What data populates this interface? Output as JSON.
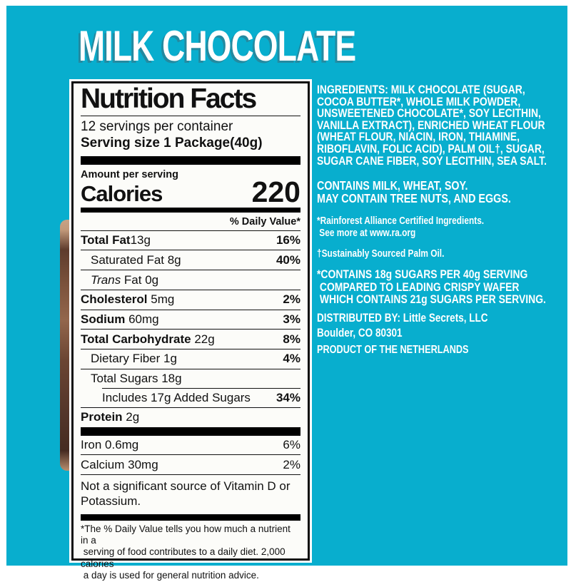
{
  "product": {
    "title": "MILK CHOCOLATE"
  },
  "nutrition": {
    "panel_title": "Nutrition Facts",
    "servings_per_container": "12 servings per container",
    "serving_size": "Serving size 1 Package(40g)",
    "amount_per_serving": "Amount per serving",
    "calories_label": "Calories",
    "calories_value": "220",
    "daily_value_header": "% Daily Value*",
    "rows": [
      {
        "cls": "",
        "bold": "Total Fat",
        "italic": "",
        "text": "13g",
        "dv": "16%"
      },
      {
        "cls": "l1",
        "bold": "",
        "italic": "",
        "text": "Saturated Fat 8g",
        "dv": "40%"
      },
      {
        "cls": "l1",
        "bold": "",
        "italic": "Trans",
        "text": " Fat 0g",
        "dv": ""
      },
      {
        "cls": "",
        "bold": "Cholesterol",
        "italic": "",
        "text": " 5mg",
        "dv": "2%"
      },
      {
        "cls": "",
        "bold": "Sodium",
        "italic": "",
        "text": " 60mg",
        "dv": "3%"
      },
      {
        "cls": "",
        "bold": "Total Carbohydrate",
        "italic": "",
        "text": " 22g",
        "dv": "8%"
      },
      {
        "cls": "l1",
        "bold": "",
        "italic": "",
        "text": "Dietary Fiber 1g",
        "dv": "4%"
      },
      {
        "cls": "l1",
        "bold": "",
        "italic": "",
        "text": "Total Sugars 18g",
        "dv": ""
      },
      {
        "cls": "l2 sep-indent",
        "bold": "",
        "italic": "",
        "text": "Includes 17g Added Sugars",
        "dv": "34%"
      },
      {
        "cls": "",
        "bold": "Protein",
        "italic": "",
        "text": " 2g",
        "dv": ""
      }
    ],
    "minerals": [
      {
        "cls": "dv-reg no-top",
        "bold": "",
        "italic": "",
        "text": "Iron 0.6mg",
        "dv": "6%"
      },
      {
        "cls": "dv-reg",
        "bold": "",
        "italic": "",
        "text": "Calcium 30mg",
        "dv": "2%"
      }
    ],
    "not_significant": "Not a significant source of Vitamin D or Potassium.",
    "footnote": "*The % Daily Value tells you how much a nutrient in a\n serving of food contributes to a daily diet. 2,000 calories\n a day is used for general nutrition advice."
  },
  "right_panel": {
    "ingredients": "INGREDIENTS: MILK CHOCOLATE (SUGAR,\nCOCOA BUTTER*, WHOLE MILK POWDER,\nUNSWEETENED CHOCOLATE*, SOY LECITHIN,\nVANILLA EXTRACT), ENRICHED WHEAT FLOUR\n(WHEAT FLOUR, NIACIN, IRON, THIAMINE,\nRIBOFLAVIN, FOLIC ACID), PALM OIL†, SUGAR,\nSUGAR CANE FIBER, SOY LECITHIN, SEA SALT.",
    "contains": "CONTAINS MILK, WHEAT, SOY.\nMAY CONTAIN TREE NUTS, AND EGGS.",
    "rainforest_note": "*Rainforest Alliance Certified Ingredients.\n See more at www.ra.org",
    "palm_oil_note": "†Sustainably Sourced Palm Oil.",
    "sugar_comparison_note": "*CONTAINS 18g SUGARS PER 40g SERVING\n COMPARED TO LEADING CRISPY WAFER\n WHICH CONTAINS 21g SUGARS PER SERVING.",
    "distributed_by": "DISTRIBUTED BY: Little Secrets, LLC\nBoulder, CO 80301",
    "product_of": "PRODUCT OF THE NETHERLANDS"
  },
  "colors": {
    "background_teal": "#08aece",
    "panel_background": "#fcfcf9",
    "panel_text": "#111111",
    "right_text": "#ffffff"
  }
}
